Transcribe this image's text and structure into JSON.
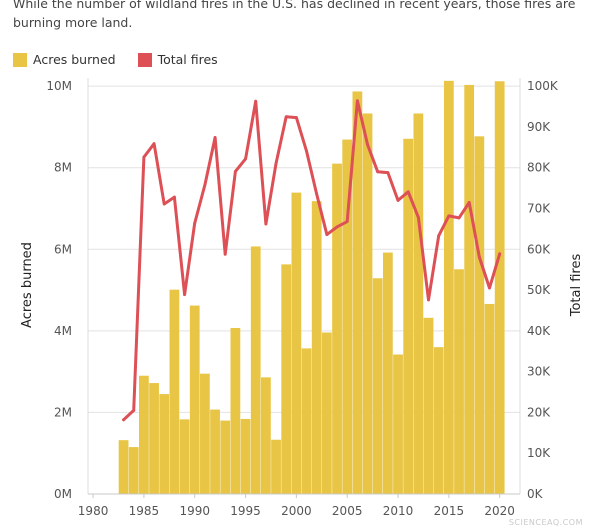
{
  "subtitle": "While the number of wildland fires in the U.S. has declined in recent years, those fires are burning more land.",
  "watermark": "SCIENCEAQ.COM",
  "colors": {
    "bar": "#E8C544",
    "line": "#DC5056",
    "grid": "#E2E2E2",
    "axis_text": "#555555"
  },
  "chart_data": {
    "type": "bar",
    "legend_position": "top-left",
    "legend": [
      {
        "label": "Acres burned",
        "color": "#E8C544",
        "kind": "bar"
      },
      {
        "label": "Total fires",
        "color": "#DC5056",
        "kind": "line"
      }
    ],
    "ylabel": "Acres burned",
    "y2label": "Total fires",
    "ylim": [
      0,
      10200000
    ],
    "y2lim": [
      0,
      102000
    ],
    "xlim": [
      1979.5,
      2022
    ],
    "yticks": [
      {
        "value": 0,
        "label": "0M"
      },
      {
        "value": 2000000,
        "label": "2M"
      },
      {
        "value": 4000000,
        "label": "4M"
      },
      {
        "value": 6000000,
        "label": "6M"
      },
      {
        "value": 8000000,
        "label": "8M"
      },
      {
        "value": 10000000,
        "label": "10M"
      }
    ],
    "y2ticks": [
      {
        "value": 0,
        "label": "0K"
      },
      {
        "value": 10000,
        "label": "10K"
      },
      {
        "value": 20000,
        "label": "20K"
      },
      {
        "value": 30000,
        "label": "30K"
      },
      {
        "value": 40000,
        "label": "40K"
      },
      {
        "value": 50000,
        "label": "50K"
      },
      {
        "value": 60000,
        "label": "60K"
      },
      {
        "value": 70000,
        "label": "70K"
      },
      {
        "value": 80000,
        "label": "80K"
      },
      {
        "value": 90000,
        "label": "90K"
      },
      {
        "value": 100000,
        "label": "100K"
      }
    ],
    "xticks": [
      {
        "value": 1980,
        "label": "1980"
      },
      {
        "value": 1985,
        "label": "1985"
      },
      {
        "value": 1990,
        "label": "1990"
      },
      {
        "value": 1995,
        "label": "1995"
      },
      {
        "value": 2000,
        "label": "2000"
      },
      {
        "value": 2005,
        "label": "2005"
      },
      {
        "value": 2010,
        "label": "2010"
      },
      {
        "value": 2015,
        "label": "2015"
      },
      {
        "value": 2020,
        "label": "2020"
      }
    ],
    "grid": "horizontal",
    "years": [
      1983,
      1984,
      1985,
      1986,
      1987,
      1988,
      1989,
      1990,
      1991,
      1992,
      1993,
      1994,
      1995,
      1996,
      1997,
      1998,
      1999,
      2000,
      2001,
      2002,
      2003,
      2004,
      2005,
      2006,
      2007,
      2008,
      2009,
      2010,
      2011,
      2012,
      2013,
      2014,
      2015,
      2016,
      2017,
      2018,
      2019,
      2020
    ],
    "series": [
      {
        "name": "Acres burned",
        "type": "bar",
        "axis": "left",
        "values": [
          1320000,
          1150000,
          2900000,
          2720000,
          2450000,
          5010000,
          1830000,
          4620000,
          2950000,
          2070000,
          1800000,
          4070000,
          1840000,
          6070000,
          2860000,
          1330000,
          5630000,
          7390000,
          3570000,
          7180000,
          3960000,
          8100000,
          8690000,
          9870000,
          9330000,
          5290000,
          5920000,
          3420000,
          8710000,
          9330000,
          4320000,
          3600000,
          10130000,
          5510000,
          10030000,
          8770000,
          4660000,
          10120000
        ]
      },
      {
        "name": "Total fires",
        "type": "line",
        "axis": "right",
        "values": [
          18200,
          20500,
          82600,
          85900,
          71100,
          72800,
          48900,
          66400,
          75800,
          87400,
          58800,
          79100,
          82200,
          96300,
          66200,
          81000,
          92500,
          92300,
          84100,
          73500,
          63600,
          65500,
          66800,
          96400,
          85700,
          79000,
          78800,
          72000,
          74100,
          67800,
          47600,
          63300,
          68200,
          67700,
          71500,
          58100,
          50500,
          58900
        ]
      }
    ]
  }
}
